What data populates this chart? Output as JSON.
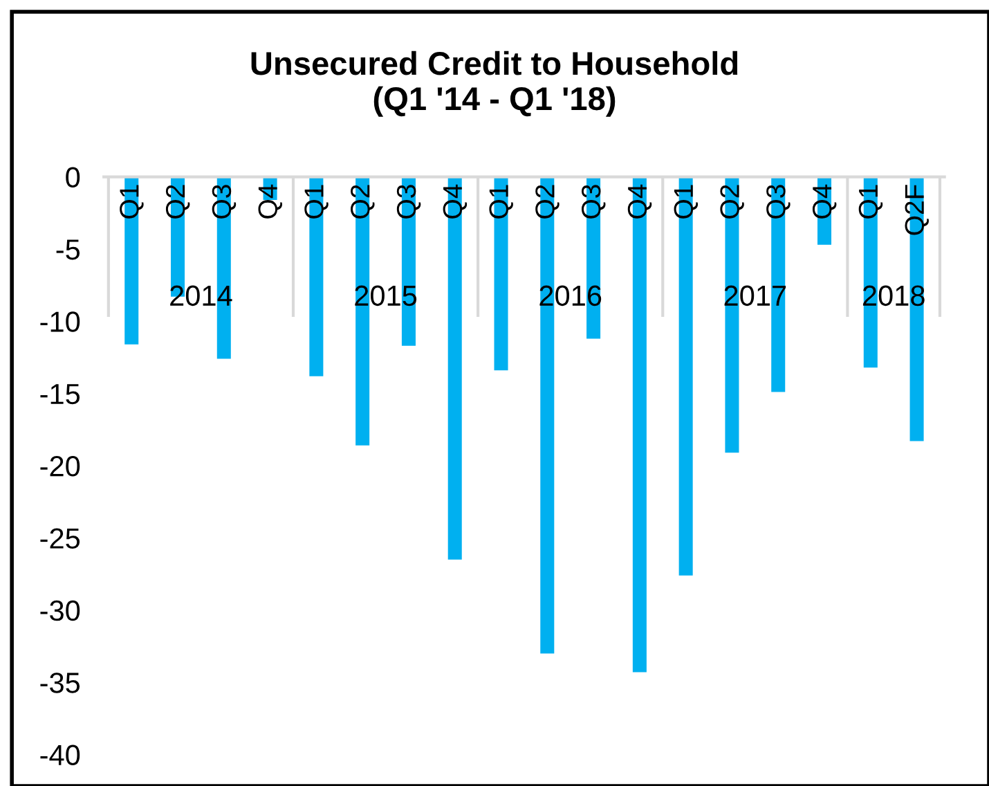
{
  "chart_data": {
    "type": "bar",
    "title": "Unsecured Credit to Household\n(Q1 '14 - Q1 '18)",
    "categories": [
      "Q1",
      "Q2",
      "Q3",
      "Q4",
      "Q1",
      "Q2",
      "Q3",
      "Q4",
      "Q1",
      "Q2",
      "Q3",
      "Q4",
      "Q1",
      "Q2",
      "Q3",
      "Q4",
      "Q1",
      "Q2F"
    ],
    "values": [
      -11.6,
      -8.3,
      -12.6,
      -1.6,
      -13.8,
      -18.6,
      -11.7,
      -26.5,
      -13.4,
      -33.0,
      -11.2,
      -34.3,
      -27.6,
      -19.1,
      -14.9,
      -4.7,
      -13.2,
      -18.3
    ],
    "color": "#00b0f0",
    "annotations": [
      "2014",
      "2015",
      "2016",
      "2017",
      "2018"
    ],
    "ylim": [
      -40,
      0
    ],
    "yticks": [
      -40,
      -35,
      -30,
      -25,
      -20,
      -15,
      -10,
      -5,
      0
    ],
    "grid": false,
    "legend": false
  }
}
